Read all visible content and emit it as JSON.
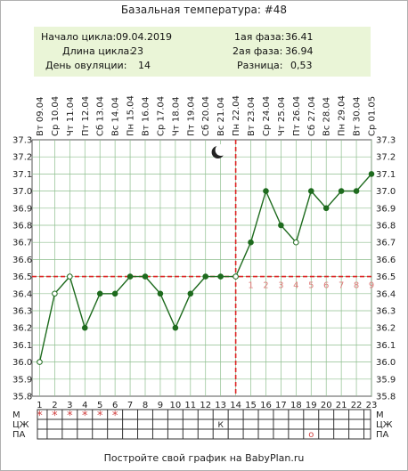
{
  "title": "Базальная температура: #48",
  "info": {
    "cycle_start_label": "Начало цикла:",
    "cycle_start": "09.04.2019",
    "cycle_length_label": "Длина цикла:",
    "cycle_length": "23",
    "ovulation_day_label": "День овуляции:",
    "ovulation_day": "14",
    "phase1_label": "1ая фаза:",
    "phase1": "36.41",
    "phase2_label": "2ая фаза:",
    "phase2": "36.94",
    "diff_label": "Разница:",
    "diff": "0,53"
  },
  "footer": "Постройте свой график на BabyPlan.ru",
  "colors": {
    "line": "#1e6b1e",
    "grid": "#8fbf8f",
    "cover": "#dd2222",
    "phase_numbers": "#e07b7b",
    "info_bg": "#eaf5d7"
  },
  "icons": {
    "moon": "moon-icon"
  },
  "chart_data": {
    "type": "line",
    "title": "Базальная температура: #48",
    "x": [
      1,
      2,
      3,
      4,
      5,
      6,
      7,
      8,
      9,
      10,
      11,
      12,
      13,
      14,
      15,
      16,
      17,
      18,
      19,
      20,
      21,
      22,
      23
    ],
    "dates": [
      "Вт 09.04",
      "Ср 10.04",
      "Чт 11.04",
      "Пт 12.04",
      "Сб 13.04",
      "Вс 14.04",
      "Пн 15.04",
      "Вт 16.04",
      "Ср 17.04",
      "Чт 18.04",
      "Пт 19.04",
      "Сб 20.04",
      "Вс 21.04",
      "Пн 22.04",
      "Вт 23.04",
      "Ср 24.04",
      "Чт 25.04",
      "Пт 26.04",
      "Сб 27.04",
      "Вс 28.04",
      "Пн 29.04",
      "Вт 30.04",
      "Ср 01.05"
    ],
    "values": [
      36.0,
      36.4,
      36.5,
      36.2,
      36.4,
      36.4,
      36.5,
      36.5,
      36.4,
      36.2,
      36.4,
      36.5,
      36.5,
      36.5,
      36.7,
      37.0,
      36.8,
      36.7,
      37.0,
      36.9,
      37.0,
      37.0,
      37.1
    ],
    "hollow_days": [
      1,
      2,
      3,
      14,
      18
    ],
    "ylim": [
      35.8,
      37.3
    ],
    "y_ticks": [
      "35.8",
      "35.9",
      "36.0",
      "36.1",
      "36.2",
      "36.3",
      "36.4",
      "36.5",
      "36.6",
      "36.7",
      "36.8",
      "36.9",
      "37.0",
      "37.1",
      "37.2",
      "37.3"
    ],
    "coverline": 36.5,
    "ovulation_day": 14,
    "phase_day_numbers": [
      "1",
      "2",
      "3",
      "4",
      "5",
      "6",
      "7",
      "8",
      "9"
    ],
    "grid": true
  },
  "rows": {
    "labels": [
      "М",
      "ЦЖ",
      "ПА"
    ],
    "m_marks": [
      "*",
      "*",
      "*",
      "*",
      "*",
      "*"
    ],
    "m_days": [
      1,
      2,
      3,
      4,
      5,
      6
    ],
    "cj_mark": "К",
    "cj_day": 13,
    "pa_mark": "о",
    "pa_day": 19
  }
}
